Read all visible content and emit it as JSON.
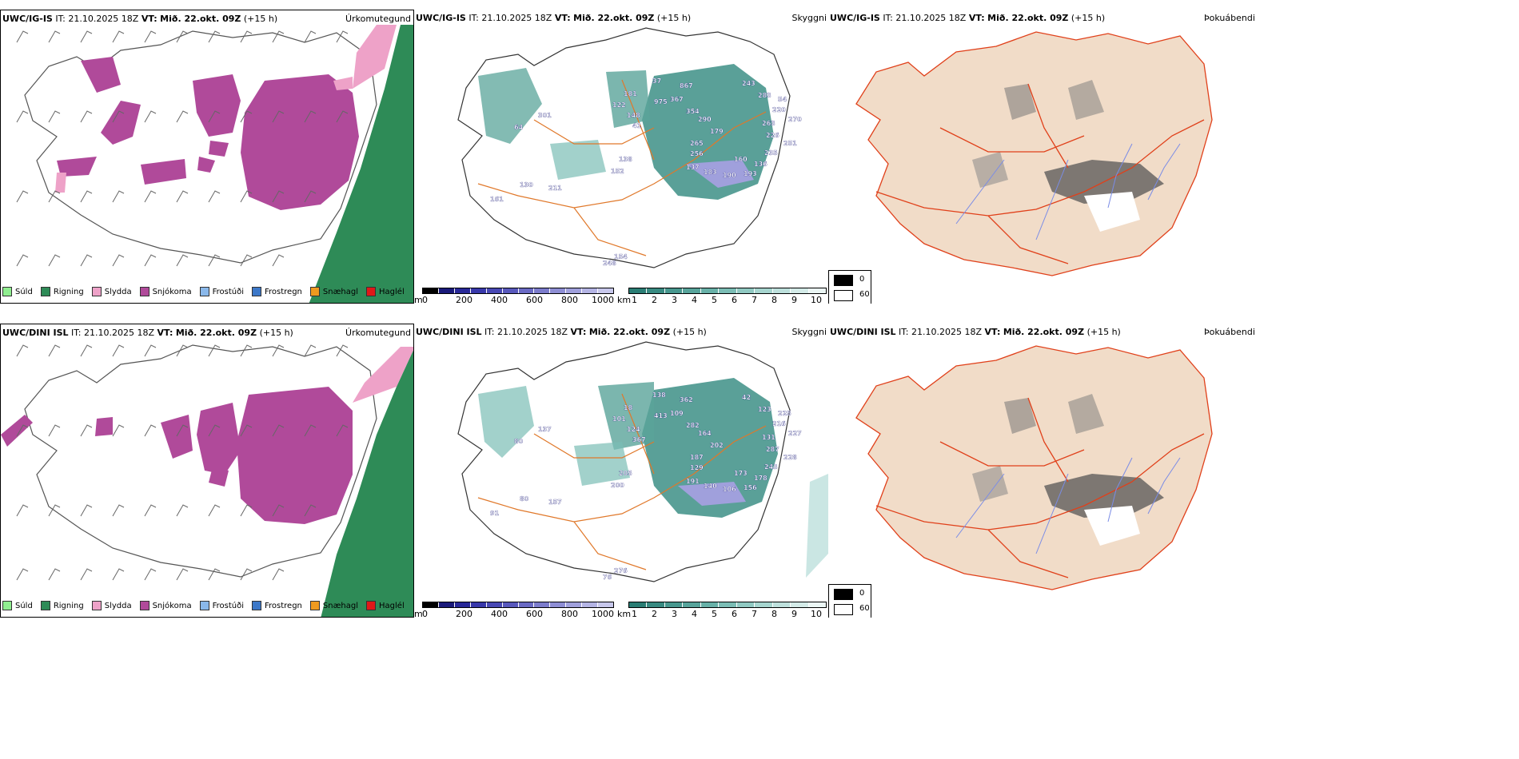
{
  "rows": [
    {
      "precip_panel": {
        "model": "UWC/IG-IS",
        "init_label": "IT:",
        "init_time": "21.10.2025 18Z",
        "valid_label": "VT:",
        "valid_time": "Mið. 22.okt. 09Z",
        "lead": "(+15 h)",
        "name": "Úrkomutegund"
      },
      "visibility_panel": {
        "model": "UWC/IG-IS",
        "init_label": "IT:",
        "init_time": "21.10.2025 18Z",
        "valid_label": "VT:",
        "valid_time": "Mið. 22.okt. 09Z",
        "lead": "(+15 h)",
        "name": "Skyggni",
        "ceiling_labels": [
          "243",
          "37",
          "867",
          "367",
          "181",
          "122",
          "148",
          "41",
          "975",
          "301",
          "64",
          "354",
          "290",
          "179",
          "265",
          "283",
          "54",
          "263",
          "220",
          "270",
          "226",
          "251",
          "235",
          "256",
          "138",
          "137",
          "183",
          "190",
          "193",
          "136",
          "160",
          "211",
          "130",
          "161",
          "248",
          "154",
          "152"
        ]
      },
      "fog_panel": {
        "model": "UWC/IG-IS",
        "init_label": "IT:",
        "init_time": "21.10.2025 18Z",
        "valid_label": "VT:",
        "valid_time": "Mið. 22.okt. 09Z",
        "lead": "(+15 h)",
        "name": "Þokuábendi"
      }
    },
    {
      "precip_panel": {
        "model": "UWC/DINI ISL",
        "init_label": "IT:",
        "init_time": "21.10.2025 18Z",
        "valid_label": "VT:",
        "valid_time": "Mið. 22.okt. 09Z",
        "lead": "(+15 h)",
        "name": "Úrkomutegund"
      },
      "visibility_panel": {
        "model": "UWC/DINI ISL",
        "init_label": "IT:",
        "init_time": "21.10.2025 18Z",
        "valid_label": "VT:",
        "valid_time": "Mið. 22.okt. 09Z",
        "lead": "(+15 h)",
        "name": "Skyggni",
        "ceiling_labels": [
          "42",
          "138",
          "362",
          "109",
          "18",
          "101",
          "124",
          "367",
          "413",
          "137",
          "80",
          "282",
          "164",
          "202",
          "187",
          "123",
          "225",
          "131",
          "216",
          "227",
          "287",
          "228",
          "243",
          "129",
          "205",
          "191",
          "140",
          "106",
          "156",
          "178",
          "173",
          "157",
          "80",
          "91",
          "76",
          "276",
          "200"
        ]
      },
      "fog_panel": {
        "model": "UWC/DINI ISL",
        "init_label": "IT:",
        "init_time": "21.10.2025 18Z",
        "valid_label": "VT:",
        "valid_time": "Mið. 22.okt. 09Z",
        "lead": "(+15 h)",
        "name": "Þokuábendi"
      }
    }
  ],
  "precip_legend": [
    {
      "label": "Súld",
      "color": "#90ee90"
    },
    {
      "label": "Rigning",
      "color": "#2e8b57"
    },
    {
      "label": "Slydda",
      "color": "#eea2c8"
    },
    {
      "label": "Snjókoma",
      "color": "#b04a9a"
    },
    {
      "label": "Frostúði",
      "color": "#8ab8ea"
    },
    {
      "label": "Frostregn",
      "color": "#3c78c8"
    },
    {
      "label": "Snæhagl",
      "color": "#ee9a20"
    },
    {
      "label": "Haglél",
      "color": "#e01818"
    }
  ],
  "elevation_colorbar": {
    "unit": "m",
    "ticks": [
      "0",
      "200",
      "400",
      "600",
      "800",
      "1000"
    ],
    "colors": [
      "#000000",
      "#1a1a7a",
      "#282898",
      "#3838aa",
      "#4848b4",
      "#5858bc",
      "#6a6ac4",
      "#7c7ccc",
      "#8e8ed4",
      "#a0a0dc",
      "#b4b4e4",
      "#c8c8ec"
    ]
  },
  "visibility_colorbar": {
    "unit": "km",
    "ticks": [
      "1",
      "2",
      "3",
      "4",
      "5",
      "6",
      "7",
      "8",
      "9",
      "10"
    ],
    "colors": [
      "#2a7d74",
      "#388a81",
      "#47978e",
      "#57a49b",
      "#68b1a8",
      "#7bbdb5",
      "#90c9c2",
      "#a6d5cf",
      "#bde0dc",
      "#d4ebe8",
      "#ebf6f4"
    ]
  },
  "fog_scale": {
    "low": "0",
    "high": "60"
  },
  "colors": {
    "snow": "#b04a9a",
    "rain": "#2e8b57",
    "sleet": "#eea2c8",
    "vis_teal": "#3d8f86",
    "road_orange": "#e0782a",
    "fog_land": "#f1dcc8",
    "fog_road": "#e0401a",
    "river_blue": "#7a8ce6"
  }
}
